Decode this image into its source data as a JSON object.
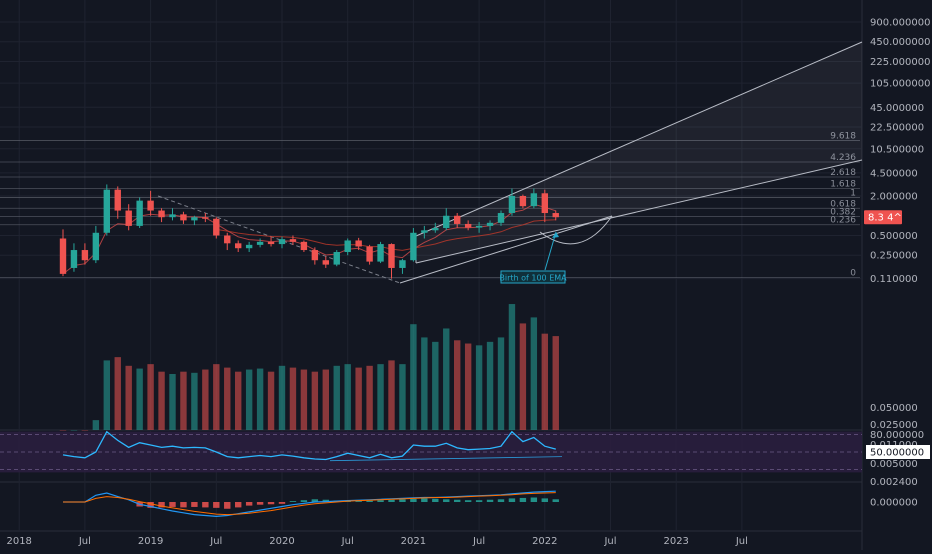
{
  "colors": {
    "background": "#131722",
    "grid": "#1f2330",
    "axis_text": "#b2b5be",
    "bull": "#26a69a",
    "bear": "#ef5350",
    "channel": "#b8bcc6",
    "rsi_line": "#2db8ff",
    "rsi_band": "#2a1e3e",
    "macd_line": "#2196f3",
    "signal_line": "#ff6d00",
    "price_tag": "#ef5350",
    "annotation": "#26a6c8"
  },
  "chart_data": [
    {
      "type": "candlestick",
      "scale": "log",
      "y_ticks": [
        "900.000000",
        "450.000000",
        "225.000000",
        "105.000000",
        "45.000000",
        "22.500000",
        "10.500000",
        "4.500000",
        "2.000000",
        "0.500000",
        "0.250000",
        "0.110000"
      ],
      "x_ticks": [
        "2018",
        "Jul",
        "2019",
        "Jul",
        "2020",
        "Jul",
        "2021",
        "Jul",
        "2022",
        "Jul",
        "2023",
        "Jul"
      ],
      "fib_levels": [
        {
          "label": "9.618",
          "value": 14.0
        },
        {
          "label": "4.236",
          "value": 6.6
        },
        {
          "label": "2.618",
          "value": 3.9
        },
        {
          "label": "1.618",
          "value": 2.6
        },
        {
          "label": "1",
          "value": 1.9
        },
        {
          "label": "0.618",
          "value": 1.3
        },
        {
          "label": "0.382",
          "value": 0.97
        },
        {
          "label": "0.236",
          "value": 0.73
        },
        {
          "label": "0",
          "value": 0.115
        }
      ],
      "last_price": {
        "value": 0.95,
        "label": "8.3 4^"
      },
      "annotation": "Birth of 100 EMA",
      "series": [
        {
          "name": "price",
          "points": [
            {
              "x": "2017-09",
              "o": 0.45,
              "h": 0.62,
              "l": 0.12,
              "c": 0.13
            },
            {
              "x": "2017-10",
              "o": 0.16,
              "h": 0.38,
              "l": 0.14,
              "c": 0.3
            },
            {
              "x": "2017-11",
              "o": 0.3,
              "h": 0.38,
              "l": 0.18,
              "c": 0.21
            },
            {
              "x": "2017-12",
              "o": 0.21,
              "h": 0.7,
              "l": 0.19,
              "c": 0.55
            },
            {
              "x": "2018-01",
              "o": 0.55,
              "h": 3.0,
              "l": 0.5,
              "c": 2.5
            },
            {
              "x": "2018-02",
              "o": 2.5,
              "h": 2.8,
              "l": 0.9,
              "c": 1.2
            },
            {
              "x": "2018-03",
              "o": 1.2,
              "h": 1.5,
              "l": 0.6,
              "c": 0.7
            },
            {
              "x": "2018-04",
              "o": 0.7,
              "h": 1.9,
              "l": 0.65,
              "c": 1.7
            },
            {
              "x": "2018-05",
              "o": 1.7,
              "h": 2.4,
              "l": 1.0,
              "c": 1.2
            },
            {
              "x": "2018-06",
              "o": 1.2,
              "h": 1.3,
              "l": 0.8,
              "c": 0.95
            },
            {
              "x": "2018-07",
              "o": 0.95,
              "h": 1.3,
              "l": 0.85,
              "c": 1.05
            },
            {
              "x": "2018-08",
              "o": 1.05,
              "h": 1.15,
              "l": 0.75,
              "c": 0.85
            },
            {
              "x": "2018-09",
              "o": 0.85,
              "h": 1.0,
              "l": 0.72,
              "c": 0.95
            },
            {
              "x": "2018-10",
              "o": 0.95,
              "h": 1.1,
              "l": 0.8,
              "c": 0.9
            },
            {
              "x": "2018-11",
              "o": 0.9,
              "h": 0.95,
              "l": 0.45,
              "c": 0.5
            },
            {
              "x": "2018-12",
              "o": 0.5,
              "h": 0.55,
              "l": 0.3,
              "c": 0.38
            },
            {
              "x": "2019-01",
              "o": 0.38,
              "h": 0.42,
              "l": 0.28,
              "c": 0.32
            },
            {
              "x": "2019-02",
              "o": 0.32,
              "h": 0.4,
              "l": 0.28,
              "c": 0.36
            },
            {
              "x": "2019-03",
              "o": 0.36,
              "h": 0.45,
              "l": 0.33,
              "c": 0.4
            },
            {
              "x": "2019-04",
              "o": 0.4,
              "h": 0.48,
              "l": 0.34,
              "c": 0.37
            },
            {
              "x": "2019-05",
              "o": 0.37,
              "h": 0.48,
              "l": 0.32,
              "c": 0.44
            },
            {
              "x": "2019-06",
              "o": 0.44,
              "h": 0.5,
              "l": 0.36,
              "c": 0.4
            },
            {
              "x": "2019-07",
              "o": 0.4,
              "h": 0.42,
              "l": 0.28,
              "c": 0.3
            },
            {
              "x": "2019-08",
              "o": 0.3,
              "h": 0.33,
              "l": 0.18,
              "c": 0.21
            },
            {
              "x": "2019-09",
              "o": 0.21,
              "h": 0.24,
              "l": 0.16,
              "c": 0.18
            },
            {
              "x": "2019-10",
              "o": 0.18,
              "h": 0.3,
              "l": 0.17,
              "c": 0.28
            },
            {
              "x": "2019-11",
              "o": 0.28,
              "h": 0.45,
              "l": 0.25,
              "c": 0.42
            },
            {
              "x": "2019-12",
              "o": 0.42,
              "h": 0.46,
              "l": 0.3,
              "c": 0.34
            },
            {
              "x": "2020-01",
              "o": 0.34,
              "h": 0.36,
              "l": 0.18,
              "c": 0.2
            },
            {
              "x": "2020-02",
              "o": 0.2,
              "h": 0.4,
              "l": 0.19,
              "c": 0.37
            },
            {
              "x": "2020-03",
              "o": 0.37,
              "h": 0.38,
              "l": 0.11,
              "c": 0.16
            },
            {
              "x": "2020-04",
              "o": 0.16,
              "h": 0.22,
              "l": 0.13,
              "c": 0.21
            },
            {
              "x": "2020-05",
              "o": 0.21,
              "h": 0.65,
              "l": 0.2,
              "c": 0.55
            },
            {
              "x": "2020-06",
              "o": 0.55,
              "h": 0.7,
              "l": 0.45,
              "c": 0.6
            },
            {
              "x": "2020-07",
              "o": 0.6,
              "h": 0.78,
              "l": 0.55,
              "c": 0.65
            },
            {
              "x": "2020-08",
              "o": 0.65,
              "h": 1.3,
              "l": 0.6,
              "c": 1.0
            },
            {
              "x": "2020-09",
              "o": 1.0,
              "h": 1.1,
              "l": 0.65,
              "c": 0.75
            },
            {
              "x": "2020-10",
              "o": 0.75,
              "h": 0.85,
              "l": 0.6,
              "c": 0.66
            },
            {
              "x": "2020-11",
              "o": 0.66,
              "h": 0.8,
              "l": 0.55,
              "c": 0.7
            },
            {
              "x": "2020-12",
              "o": 0.7,
              "h": 0.85,
              "l": 0.6,
              "c": 0.78
            },
            {
              "x": "2021-01",
              "o": 0.78,
              "h": 1.2,
              "l": 0.7,
              "c": 1.1
            },
            {
              "x": "2021-02",
              "o": 1.1,
              "h": 2.6,
              "l": 1.0,
              "c": 2.0
            },
            {
              "x": "2021-03",
              "o": 2.0,
              "h": 2.1,
              "l": 1.3,
              "c": 1.4
            },
            {
              "x": "2021-04",
              "o": 1.4,
              "h": 2.6,
              "l": 1.3,
              "c": 2.2
            },
            {
              "x": "2021-05",
              "o": 2.2,
              "h": 2.5,
              "l": 0.8,
              "c": 1.1
            },
            {
              "x": "2021-06",
              "o": 1.1,
              "h": 1.2,
              "l": 0.85,
              "c": 0.95
            }
          ]
        }
      ]
    },
    {
      "type": "bar",
      "name": "volume",
      "y_ticks": [
        "0.050000",
        "0.025000",
        "0.011000",
        "0.005000",
        "0.002400"
      ],
      "values": [
        0.02,
        0.02,
        0.02,
        0.03,
        0.35,
        0.4,
        0.28,
        0.25,
        0.3,
        0.22,
        0.2,
        0.22,
        0.21,
        0.24,
        0.3,
        0.26,
        0.22,
        0.24,
        0.25,
        0.22,
        0.28,
        0.26,
        0.24,
        0.22,
        0.24,
        0.28,
        0.3,
        0.26,
        0.28,
        0.3,
        0.35,
        0.3,
        1.55,
        0.9,
        0.75,
        1.3,
        0.8,
        0.7,
        0.65,
        0.75,
        0.9,
        3.55,
        1.6,
        2.05,
        1.05,
        0.95
      ]
    },
    {
      "type": "line",
      "name": "rsi",
      "y_ticks": [
        "80.000000",
        "50.000000"
      ],
      "values": [
        45,
        42,
        40,
        50,
        85,
        70,
        58,
        66,
        62,
        58,
        60,
        57,
        58,
        57,
        50,
        42,
        40,
        42,
        44,
        42,
        45,
        43,
        40,
        38,
        37,
        42,
        48,
        44,
        40,
        46,
        40,
        43,
        62,
        60,
        60,
        65,
        57,
        54,
        55,
        56,
        60,
        85,
        68,
        75,
        60,
        55
      ]
    },
    {
      "type": "bar",
      "name": "macd",
      "y_ticks": [
        "0.000000"
      ],
      "histogram": [
        0,
        0,
        0,
        0,
        0,
        0,
        0,
        -0.1,
        -0.13,
        -0.12,
        -0.11,
        -0.12,
        -0.11,
        -0.12,
        -0.13,
        -0.15,
        -0.12,
        -0.08,
        -0.06,
        -0.05,
        -0.04,
        0.02,
        0.04,
        0.06,
        0.05,
        0.03,
        0.02,
        0.02,
        0.03,
        0.04,
        0.05,
        0.06,
        0.07,
        0.08,
        0.07,
        0.06,
        0.05,
        0.04,
        0.04,
        0.05,
        0.06,
        0.08,
        0.09,
        0.1,
        0.08,
        0.06
      ],
      "macd": [
        0,
        0,
        0,
        0.15,
        0.2,
        0.12,
        0.05,
        -0.05,
        -0.1,
        -0.15,
        -0.2,
        -0.24,
        -0.28,
        -0.3,
        -0.32,
        -0.3,
        -0.26,
        -0.22,
        -0.18,
        -0.14,
        -0.1,
        -0.06,
        -0.03,
        0.0,
        0.01,
        0.02,
        0.03,
        0.04,
        0.05,
        0.06,
        0.07,
        0.08,
        0.09,
        0.1,
        0.1,
        0.11,
        0.12,
        0.13,
        0.14,
        0.15,
        0.16,
        0.18,
        0.2,
        0.22,
        0.23,
        0.24
      ],
      "signal": [
        0,
        0,
        0,
        0.08,
        0.12,
        0.1,
        0.06,
        0.01,
        -0.04,
        -0.09,
        -0.13,
        -0.17,
        -0.21,
        -0.24,
        -0.27,
        -0.28,
        -0.27,
        -0.25,
        -0.22,
        -0.19,
        -0.15,
        -0.11,
        -0.07,
        -0.04,
        -0.02,
        0.0,
        0.02,
        0.03,
        0.04,
        0.05,
        0.06,
        0.07,
        0.08,
        0.09,
        0.1,
        0.1,
        0.11,
        0.12,
        0.13,
        0.14,
        0.15,
        0.16,
        0.18,
        0.19,
        0.2,
        0.21
      ]
    }
  ]
}
